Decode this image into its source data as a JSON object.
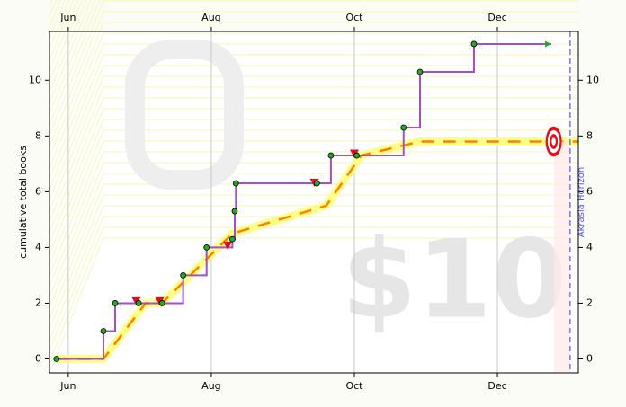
{
  "chart_data": {
    "type": "line",
    "y_label": "cumulative total books",
    "watermark": "$10",
    "horizon_label": "Akrasia Horizon",
    "horizon_x": 214,
    "xlim": [
      -8,
      217.5
    ],
    "ylim": [
      -0.5,
      11.75
    ],
    "xticks": [
      {
        "value": 0,
        "label": "Jun"
      },
      {
        "value": 61,
        "label": "Aug"
      },
      {
        "value": 122,
        "label": "Oct"
      },
      {
        "value": 183,
        "label": "Dec"
      }
    ],
    "yticks": [
      0,
      2,
      4,
      6,
      8,
      10
    ],
    "grid": true,
    "road": {
      "color": "#ffff88",
      "centerline_color": "#ff8000",
      "x": [
        -5,
        15,
        33,
        40,
        70,
        110,
        125,
        150,
        217.5
      ],
      "values": [
        0,
        0,
        2,
        2,
        4.5,
        5.5,
        7.3,
        7.8,
        7.8
      ]
    },
    "datapoints": {
      "color": "#a050c8",
      "dot_color": "#22aa22",
      "x": [
        -5,
        15,
        20,
        30,
        40,
        49,
        59,
        70,
        71,
        71.5,
        106,
        112,
        123,
        143,
        150,
        173
      ],
      "values": [
        0,
        1,
        2,
        2,
        2,
        3,
        4,
        4.3,
        5.3,
        6.3,
        6.3,
        7.3,
        7.3,
        8.3,
        10.3,
        11.3
      ],
      "projection_x": 206
    },
    "derails": {
      "color": "#e01010",
      "x": [
        29,
        39,
        68,
        105,
        122
      ],
      "values": [
        2.05,
        2.05,
        4.05,
        6.3,
        7.35
      ]
    },
    "goal": {
      "x": 207,
      "value": 7.8
    }
  }
}
